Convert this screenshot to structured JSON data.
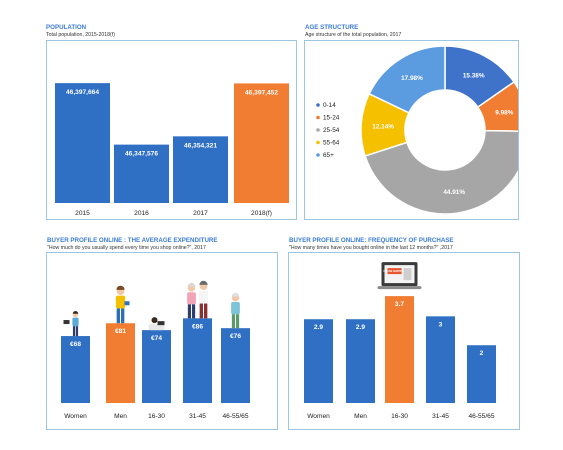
{
  "colors": {
    "blue": "#2f6fc4",
    "orange": "#f07d32",
    "sky": "#5b9be0",
    "yellow": "#f5c000",
    "grey": "#a6a6a6",
    "border": "#9cc7e3"
  },
  "population": {
    "title": "POPULATION",
    "subtitle": "Total population, 2015-2018(f)",
    "chart_data": {
      "type": "bar",
      "categories": [
        "2015",
        "2016",
        "2017",
        "2018(f)"
      ],
      "values": [
        46397664,
        46347576,
        46354321,
        46397452
      ],
      "value_labels": [
        "46,397,664",
        "46,347,576",
        "46,354,321",
        "46,397,452"
      ],
      "highlight": [
        false,
        false,
        false,
        true
      ],
      "ylim": [
        46300000,
        46410000
      ]
    }
  },
  "age": {
    "title": "AGE STRUCTURE",
    "subtitle": "Age structure of the total population, 2017",
    "chart_data": {
      "type": "pie",
      "categories": [
        "0-14",
        "15-24",
        "25-54",
        "55-64",
        "65+"
      ],
      "values": [
        15.38,
        9.98,
        44.91,
        12.14,
        17.98
      ],
      "value_labels": [
        "15.38%",
        "9.98%",
        "44.91%",
        "12.14%",
        "17.98%"
      ],
      "colors": [
        "#3f73c9",
        "#f07d32",
        "#a6a6a6",
        "#f5c000",
        "#5b9be0"
      ],
      "legend": "left"
    }
  },
  "expenditure": {
    "title": "BUYER PROFILE ONLINE : THE AVERAGE EXPENDITURE",
    "subtitle": "\"How much do you usually spend every time you shop online?\", 2017",
    "chart_data": {
      "type": "bar",
      "categories": [
        "Women",
        "Men",
        "16-30",
        "31-45",
        "46-55/65"
      ],
      "values": [
        68,
        81,
        74,
        86,
        76
      ],
      "value_labels": [
        "€68",
        "€81",
        "€74",
        "€86",
        "€76"
      ],
      "highlight": [
        false,
        true,
        false,
        false,
        false
      ],
      "ylim": [
        0,
        130
      ]
    }
  },
  "frequency": {
    "title": "BUYER PROFILE ONLINE: FREQUENCY OF PURCHASE",
    "subtitle": "\"How many times have you bought online in the last 12 months?\" ,2017",
    "badge": "ONLINE SHOPPING",
    "chart_data": {
      "type": "bar",
      "categories": [
        "Women",
        "Men",
        "16-30",
        "31-45",
        "46-55/65"
      ],
      "values": [
        2.9,
        2.9,
        3.7,
        3,
        2
      ],
      "value_labels": [
        "2.9",
        "2.9",
        "3.7",
        "3",
        "2"
      ],
      "highlight": [
        false,
        false,
        true,
        false,
        false
      ],
      "ylim": [
        0,
        4.5
      ]
    }
  }
}
